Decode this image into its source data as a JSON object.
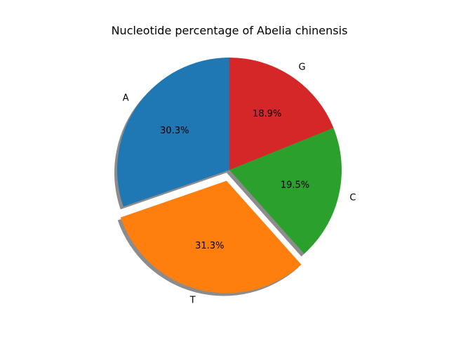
{
  "chart_data": {
    "type": "pie",
    "title": "Nucleotide percentage of Abelia chinensis",
    "start_angle_deg": 90,
    "direction": "counterclockwise",
    "shadow": true,
    "slices": [
      {
        "label": "A",
        "value": 30.3,
        "pct_text": "30.3%",
        "color": "#1f77b4",
        "exploded": false
      },
      {
        "label": "T",
        "value": 31.3,
        "pct_text": "31.3%",
        "color": "#ff7f0e",
        "exploded": true
      },
      {
        "label": "C",
        "value": 19.5,
        "pct_text": "19.5%",
        "color": "#2ca02c",
        "exploded": false
      },
      {
        "label": "G",
        "value": 18.9,
        "pct_text": "18.9%",
        "color": "#d62728",
        "exploded": false
      }
    ]
  }
}
